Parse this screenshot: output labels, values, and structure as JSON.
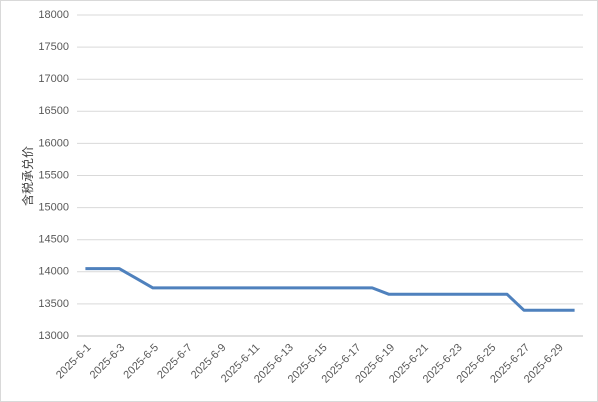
{
  "chart_data": {
    "type": "line",
    "y_label": "含税承兑价",
    "categories": [
      "2025-6-1",
      null,
      "2025-6-3",
      null,
      "2025-6-5",
      null,
      "2025-6-7",
      null,
      "2025-6-9",
      null,
      "2025-6-11",
      null,
      "2025-6-13",
      null,
      "2025-6-15",
      null,
      "2025-6-17",
      null,
      "2025-6-19",
      null,
      "2025-6-21",
      null,
      "2025-6-23",
      null,
      "2025-6-25",
      null,
      "2025-6-27",
      null,
      "2025-6-29",
      null
    ],
    "series": [
      {
        "color": "#4f81bd",
        "values": [
          14050,
          14050,
          14050,
          13900,
          13750,
          13750,
          13750,
          13750,
          13750,
          13750,
          13750,
          13750,
          13750,
          13750,
          13750,
          13750,
          13750,
          13750,
          13650,
          13650,
          13650,
          13650,
          13650,
          13650,
          13650,
          13650,
          13400,
          13400,
          13400,
          13400
        ]
      }
    ],
    "ylim": [
      13000,
      18000
    ],
    "yticks": [
      13000,
      13500,
      14000,
      14500,
      15000,
      15500,
      16000,
      16500,
      17000,
      17500,
      18000
    ],
    "grid": true
  }
}
